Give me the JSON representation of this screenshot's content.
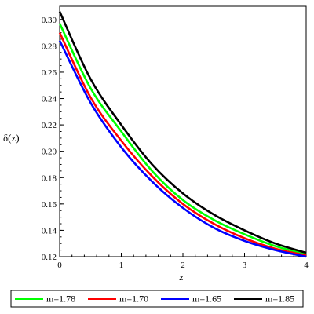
{
  "chart_data": {
    "type": "line",
    "title": "",
    "xlabel": "z",
    "ylabel": "δ(z)",
    "xlim": [
      0,
      4
    ],
    "ylim": [
      0.12,
      0.31
    ],
    "grid": false,
    "legend_position": "bottom",
    "x_ticks": [
      "0",
      "1",
      "2",
      "3",
      "4"
    ],
    "y_ticks": [
      "0.12",
      "0.14",
      "0.16",
      "0.18",
      "0.20",
      "0.22",
      "0.24",
      "0.26",
      "0.28",
      "0.30"
    ],
    "x": [
      0,
      0.5,
      1,
      1.5,
      2,
      2.5,
      3,
      3.5,
      4
    ],
    "series": [
      {
        "name": "m=1.78",
        "color": "#00ff00",
        "values": [
          0.297,
          0.248,
          0.215,
          0.185,
          0.163,
          0.148,
          0.137,
          0.128,
          0.122
        ]
      },
      {
        "name": "m=1.70",
        "color": "#ff0000",
        "values": [
          0.29,
          0.241,
          0.208,
          0.181,
          0.16,
          0.145,
          0.134,
          0.126,
          0.121
        ]
      },
      {
        "name": "m=1.65",
        "color": "#0000ff",
        "values": [
          0.284,
          0.237,
          0.203,
          0.177,
          0.157,
          0.142,
          0.132,
          0.125,
          0.12
        ]
      },
      {
        "name": "m=1.85",
        "color": "#000000",
        "values": [
          0.306,
          0.255,
          0.22,
          0.19,
          0.168,
          0.152,
          0.14,
          0.13,
          0.123
        ]
      }
    ]
  }
}
